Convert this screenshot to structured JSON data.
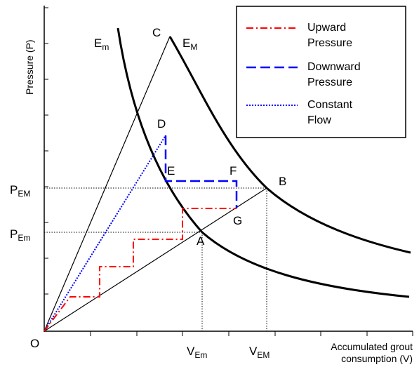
{
  "diagram": {
    "axes": {
      "y_title": "Pressure (P)",
      "x_title_line1": "Accumulated grout",
      "x_title_line2": "consumption (V)",
      "origin": "O"
    },
    "curves": {
      "e_m_main": "E",
      "e_m_sub": "m",
      "e_M_main": "E",
      "e_M_sub": "M"
    },
    "points": {
      "a": "A",
      "b": "B",
      "c": "C",
      "d": "D",
      "e": "E",
      "f": "F",
      "g": "G"
    },
    "axis_marks": {
      "p_em_main": "P",
      "p_em_sub": "Em",
      "p_EM_main": "P",
      "p_EM_sub": "EM",
      "v_em_main": "V",
      "v_em_sub": "Em",
      "v_EM_main": "V",
      "v_EM_sub": "EM"
    },
    "legend": [
      {
        "line1": "Upward",
        "line2": "Pressure",
        "color": "#ff0000",
        "style": "dash-dot"
      },
      {
        "line1": "Downward",
        "line2": "Pressure",
        "color": "#0000ff",
        "style": "dashed"
      },
      {
        "line1": "Constant",
        "line2": "Flow",
        "color": "#0000ff",
        "style": "dotted"
      }
    ]
  }
}
